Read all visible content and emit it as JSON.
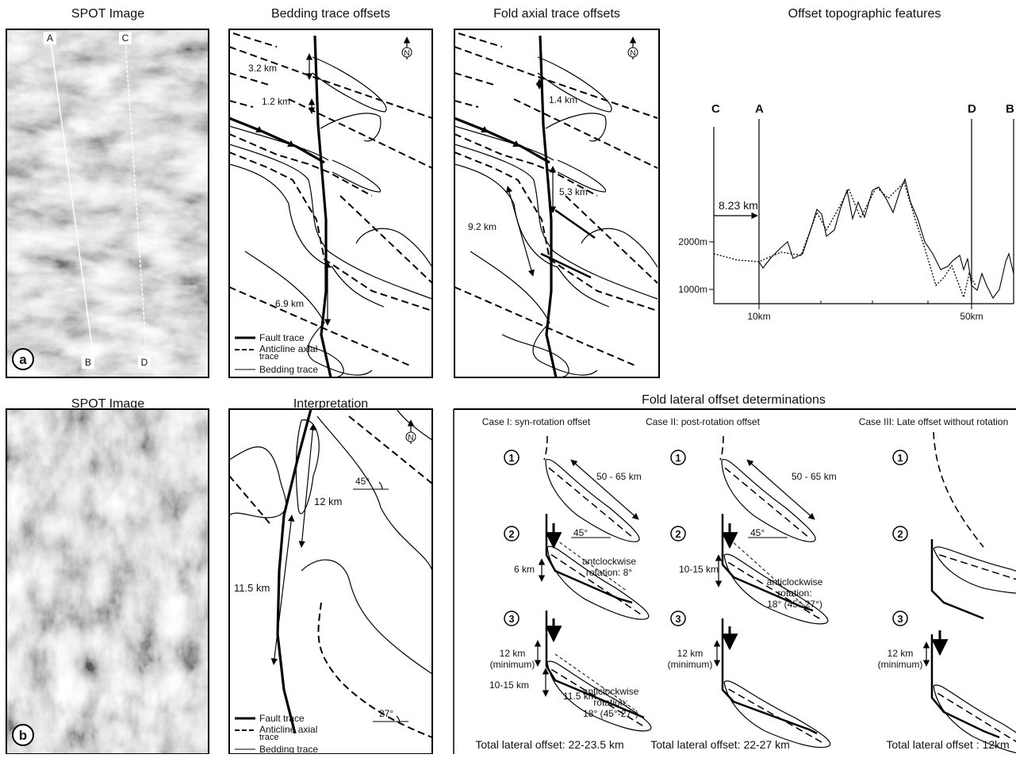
{
  "panel_a_image": {
    "title": "SPOT Image",
    "lines": [
      "A",
      "C",
      "B",
      "D"
    ],
    "badge": "a"
  },
  "bedding": {
    "title": "Bedding trace offsets",
    "north": "N",
    "offsets": [
      "3.2 km",
      "1.2 km",
      "6.9 km"
    ],
    "legend": {
      "fault": "Fault trace",
      "anticline": [
        "Anticline axial",
        "trace"
      ],
      "bedding": "Bedding trace"
    }
  },
  "fold_axial": {
    "title": "Fold axial trace offsets",
    "north": "N",
    "offsets": [
      "1.4 km",
      "5.3 km",
      "9.2 km"
    ]
  },
  "topo": {
    "title": "Offset topographic features",
    "points": [
      "C",
      "A",
      "D",
      "B"
    ],
    "offset": "8.23 km",
    "yticks": [
      "2000m",
      "1000m"
    ],
    "xticks": [
      "10km",
      "50km"
    ]
  },
  "panel_b_image": {
    "title": "SPOT Image",
    "badge": "b"
  },
  "interpretation": {
    "title": "Interpretation",
    "north": "N",
    "labels": [
      "45°",
      "12 km",
      "11.5 km",
      "27°"
    ],
    "legend": {
      "fault": "Fault trace",
      "anticline": [
        "Anticline axial",
        "trace"
      ],
      "bedding": "Bedding trace"
    }
  },
  "lateral": {
    "title": "Fold lateral offset determinations",
    "steps": [
      "1",
      "2",
      "3"
    ],
    "cases": [
      {
        "title": "Case I: syn-rotation offset",
        "length": "50 - 65 km",
        "angle": "45°",
        "step2_offset": "6 km",
        "step2_rotation": [
          "antclockwise",
          "rotation: 8°"
        ],
        "min_offset": [
          "12 km",
          "(minimum)"
        ],
        "step3_offset": "10-15 km",
        "step3_extra": "11.5 km",
        "step3_rotation": [
          "anticlockwise",
          "rotation:",
          "18° (45°-27°)"
        ],
        "total": "Total lateral offset: 22-23.5 km"
      },
      {
        "title": "Case II: post-rotation offset",
        "length": "50 - 65 km",
        "angle": "45°",
        "step2_offset": "10-15 km",
        "step2_rotation": [
          "anticlockwise",
          "rotation:",
          "18° (45°-27°)"
        ],
        "min_offset": [
          "12 km",
          "(minimum)"
        ],
        "total": "Total lateral offset: 22-27 km"
      },
      {
        "title": "Case III: Late offset without rotation",
        "min_offset": [
          "12 km",
          "(minimum)"
        ],
        "total": "Total lateral offset : 12km"
      }
    ]
  }
}
